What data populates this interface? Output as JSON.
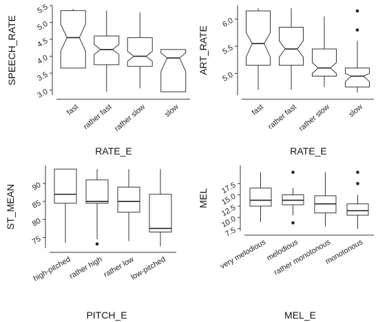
{
  "chart_data": [
    {
      "type": "boxplot",
      "notched": true,
      "xlabel": "RATE_E",
      "ylabel": "SPEECH_RATE",
      "ylim": [
        2.85,
        5.5
      ],
      "yticks": [
        3.0,
        3.5,
        4.0,
        4.5,
        5.0,
        5.5
      ],
      "ytick_labels": [
        "3.0",
        "3.5",
        "4.0",
        "4.5",
        "5.0",
        "5.5"
      ],
      "categories": [
        "fast",
        "rather fast",
        "rather slow",
        "slow"
      ],
      "boxes": [
        {
          "whisker_low": 3.65,
          "q1": 3.65,
          "median": 4.55,
          "q3": 5.35,
          "whisker_high": 5.4,
          "notch": [
            4.15,
            4.95
          ],
          "outliers": []
        },
        {
          "whisker_low": 2.95,
          "q1": 3.75,
          "median": 4.2,
          "q3": 4.6,
          "whisker_high": 5.35,
          "notch": [
            4.05,
            4.35
          ],
          "outliers": []
        },
        {
          "whisker_low": 3.05,
          "q1": 3.7,
          "median": 4.0,
          "q3": 4.55,
          "whisker_high": 5.3,
          "notch": [
            3.85,
            4.15
          ],
          "outliers": []
        },
        {
          "whisker_low": 2.95,
          "q1": 2.95,
          "median": 3.95,
          "q3": 4.2,
          "whisker_high": 4.2,
          "notch": [
            3.55,
            4.1
          ],
          "outliers": []
        }
      ]
    },
    {
      "type": "boxplot",
      "notched": true,
      "xlabel": "RATE_E",
      "ylabel": "ART_RATE",
      "ylim": [
        4.6,
        6.25
      ],
      "yticks": [
        5.0,
        5.5,
        6.0
      ],
      "ytick_labels": [
        "5.0",
        "5.5",
        "6.0"
      ],
      "categories": [
        "fast",
        "rather fast",
        "rather slow",
        "slow"
      ],
      "boxes": [
        {
          "whisker_low": 4.7,
          "q1": 5.15,
          "median": 5.55,
          "q3": 6.15,
          "whisker_high": 6.2,
          "notch": [
            5.3,
            5.75
          ],
          "outliers": []
        },
        {
          "whisker_low": 4.7,
          "q1": 5.15,
          "median": 5.45,
          "q3": 5.85,
          "whisker_high": 6.2,
          "notch": [
            5.3,
            5.6
          ],
          "outliers": []
        },
        {
          "whisker_low": 4.75,
          "q1": 4.95,
          "median": 5.1,
          "q3": 5.45,
          "whisker_high": 6.05,
          "notch": [
            5.0,
            5.2
          ],
          "outliers": []
        },
        {
          "whisker_low": 4.65,
          "q1": 4.75,
          "median": 4.95,
          "q3": 5.1,
          "whisker_high": 5.6,
          "notch": [
            4.85,
            5.0
          ],
          "outliers": [
            5.8,
            6.15
          ]
        }
      ]
    },
    {
      "type": "boxplot",
      "notched": false,
      "xlabel": "PITCH_E",
      "ylabel": "ST_MEAN",
      "ylim": [
        72,
        95
      ],
      "yticks": [
        75,
        80,
        85,
        90
      ],
      "ytick_labels": [
        "75",
        "80",
        "85",
        "90"
      ],
      "categories": [
        "high-pitched",
        "rather high",
        "rather low",
        "low-pitched"
      ],
      "boxes": [
        {
          "whisker_low": 73.5,
          "q1": 84.5,
          "median": 87,
          "q3": 94,
          "whisker_high": 94,
          "outliers": []
        },
        {
          "whisker_low": 74.5,
          "q1": 84.5,
          "median": 85,
          "q3": 91,
          "whisker_high": 94,
          "outliers": [
            73.2
          ]
        },
        {
          "whisker_low": 74,
          "q1": 82,
          "median": 85,
          "q3": 89,
          "whisker_high": 94,
          "outliers": []
        },
        {
          "whisker_low": 72.5,
          "q1": 76.5,
          "median": 77.5,
          "q3": 87,
          "whisker_high": 94,
          "outliers": []
        }
      ]
    },
    {
      "type": "boxplot",
      "notched": false,
      "xlabel": "MEL_E",
      "ylabel": "MEL",
      "ylim": [
        7.0,
        21.5
      ],
      "yticks": [
        7.5,
        10.0,
        12.5,
        15.0,
        17.5
      ],
      "ytick_labels": [
        "7.5",
        "10.0",
        "12.5",
        "15.0",
        "17.5"
      ],
      "categories": [
        "very melodious",
        "melodious",
        "rather monotonous",
        "monotonous"
      ],
      "boxes": [
        {
          "whisker_low": 9.0,
          "q1": 12.5,
          "median": 13.8,
          "q3": 16.5,
          "whisker_high": 20.0,
          "outliers": []
        },
        {
          "whisker_low": 10.5,
          "q1": 12.8,
          "median": 13.8,
          "q3": 15.0,
          "whisker_high": 16.5,
          "outliers": [
            20.0,
            8.8
          ]
        },
        {
          "whisker_low": 8.0,
          "q1": 11.0,
          "median": 13.0,
          "q3": 14.8,
          "whisker_high": 20.0,
          "outliers": []
        },
        {
          "whisker_low": 7.5,
          "q1": 10.5,
          "median": 11.5,
          "q3": 13.0,
          "whisker_high": 15.0,
          "outliers": [
            17.5,
            20.0
          ]
        }
      ]
    }
  ]
}
